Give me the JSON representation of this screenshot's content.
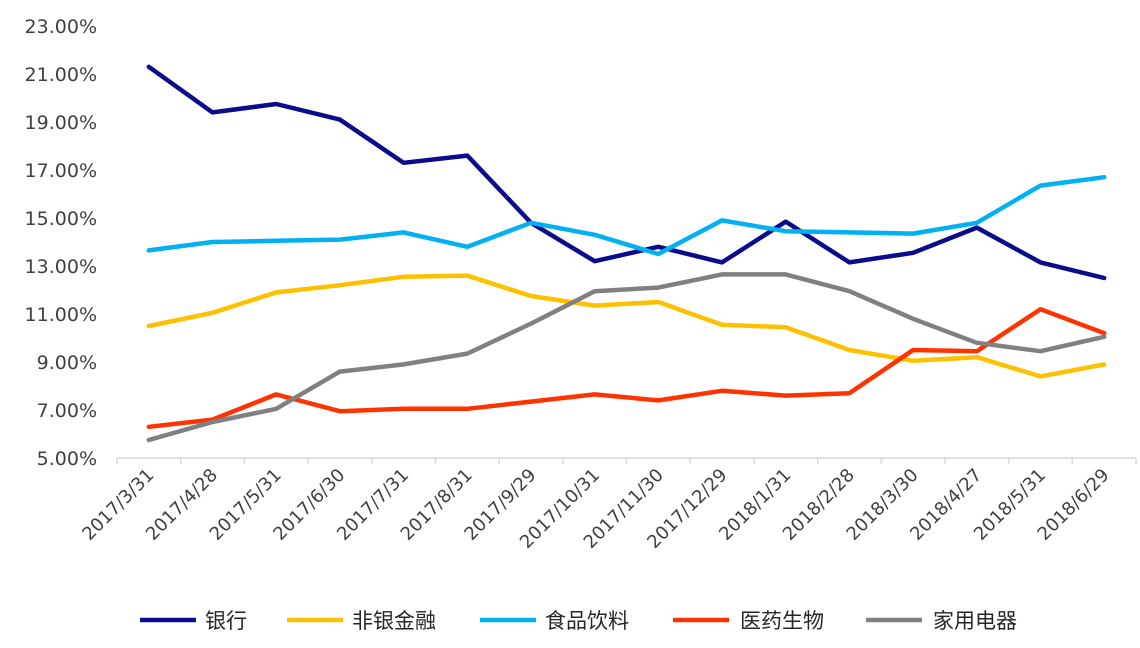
{
  "chart_data": {
    "type": "line",
    "title": "",
    "xlabel": "",
    "ylabel": "",
    "ylim": [
      5.0,
      23.0
    ],
    "y_ticks": [
      "5.00%",
      "7.00%",
      "9.00%",
      "11.00%",
      "13.00%",
      "15.00%",
      "17.00%",
      "19.00%",
      "21.00%",
      "23.00%"
    ],
    "y_tick_values": [
      5,
      7,
      9,
      11,
      13,
      15,
      17,
      19,
      21,
      23
    ],
    "grid": false,
    "legend_position": "bottom",
    "categories": [
      "2017/3/31",
      "2017/4/28",
      "2017/5/31",
      "2017/6/30",
      "2017/7/31",
      "2017/8/31",
      "2017/9/29",
      "2017/10/31",
      "2017/11/30",
      "2017/12/29",
      "2018/1/31",
      "2018/2/28",
      "2018/3/30",
      "2018/4/27",
      "2018/5/31",
      "2018/6/29"
    ],
    "series": [
      {
        "name": "银行",
        "color": "#0B0B8C",
        "values": [
          21.3,
          19.4,
          19.75,
          19.1,
          17.3,
          17.6,
          14.8,
          13.2,
          13.8,
          13.15,
          14.85,
          13.15,
          13.55,
          14.6,
          13.15,
          12.5
        ]
      },
      {
        "name": "非银金融",
        "color": "#FFC000",
        "values": [
          10.5,
          11.05,
          11.9,
          12.2,
          12.55,
          12.6,
          11.75,
          11.35,
          11.5,
          10.55,
          10.45,
          9.5,
          9.05,
          9.2,
          8.4,
          8.9
        ]
      },
      {
        "name": "食品饮料",
        "color": "#00B0F0",
        "values": [
          13.65,
          14.0,
          14.05,
          14.1,
          14.4,
          13.8,
          14.8,
          14.3,
          13.5,
          14.9,
          14.45,
          14.4,
          14.35,
          14.8,
          16.35,
          16.7
        ]
      },
      {
        "name": "医药生物",
        "color": "#FF3300",
        "values": [
          6.3,
          6.6,
          7.65,
          6.95,
          7.05,
          7.05,
          7.35,
          7.65,
          7.4,
          7.8,
          7.6,
          7.7,
          9.5,
          9.45,
          11.2,
          10.2
        ]
      },
      {
        "name": "家用电器",
        "color": "#808080",
        "values": [
          5.75,
          6.5,
          7.05,
          8.6,
          8.9,
          9.35,
          10.6,
          11.95,
          12.1,
          12.65,
          12.65,
          11.95,
          10.8,
          9.8,
          9.45,
          10.05
        ]
      }
    ]
  }
}
